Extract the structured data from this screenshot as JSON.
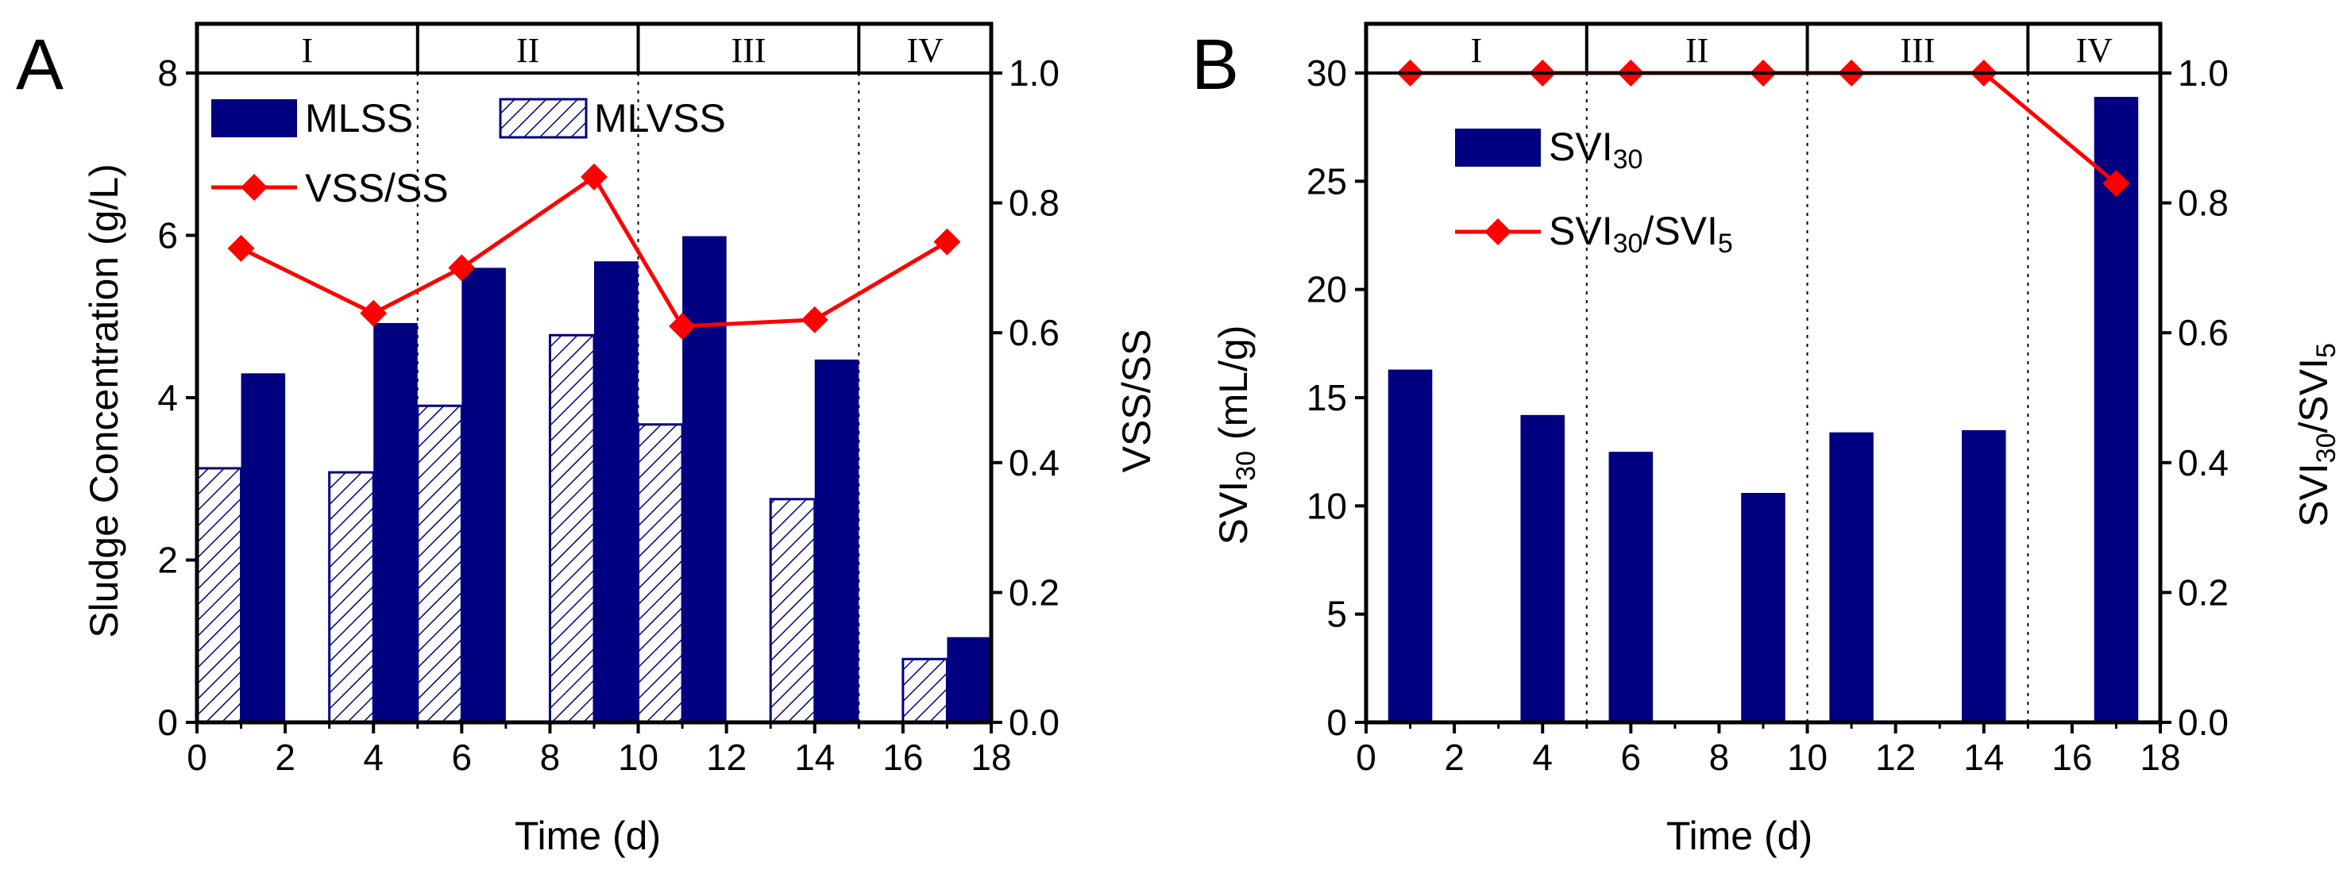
{
  "colors": {
    "bar": "#000080",
    "line": "#ff0000",
    "axis": "#000000"
  },
  "chart_data": [
    {
      "panel": "A",
      "type": "bar",
      "xlabel": "Time (d)",
      "ylabel": "Sludge Concentration (g/L)",
      "y2label": "VSS/SS",
      "xlim": [
        0,
        18
      ],
      "ylim": [
        0,
        8
      ],
      "y2lim": [
        0,
        1.0
      ],
      "xticks": [
        0,
        2,
        4,
        6,
        8,
        10,
        12,
        14,
        16,
        18
      ],
      "yticks": [
        0,
        2,
        4,
        6,
        8
      ],
      "y2ticks": [
        "0.0",
        "0.2",
        "0.4",
        "0.6",
        "0.8",
        "1.0"
      ],
      "phases": [
        {
          "label": "I",
          "start": 0,
          "end": 5
        },
        {
          "label": "II",
          "start": 5,
          "end": 10
        },
        {
          "label": "III",
          "start": 10,
          "end": 15
        },
        {
          "label": "IV",
          "start": 15,
          "end": 18
        }
      ],
      "days": [
        1,
        4,
        6,
        9,
        11,
        14,
        17
      ],
      "series": [
        {
          "name": "MLSS",
          "kind": "bar-solid",
          "values": [
            4.3,
            4.92,
            5.6,
            5.68,
            5.99,
            4.47,
            1.05
          ]
        },
        {
          "name": "MLVSS",
          "kind": "bar-hatched",
          "values": [
            3.13,
            3.08,
            3.9,
            4.77,
            3.67,
            2.75,
            0.78
          ]
        },
        {
          "name": "VSS/SS",
          "kind": "line",
          "axis": "right",
          "values": [
            0.73,
            0.63,
            0.7,
            0.84,
            0.61,
            0.62,
            0.74
          ]
        }
      ]
    },
    {
      "panel": "B",
      "type": "bar",
      "xlabel": "Time (d)",
      "ylabel": "SVI30 (mL/g)",
      "y2label": "SVI30/SVI5",
      "xlim": [
        0,
        18
      ],
      "ylim": [
        0,
        30
      ],
      "y2lim": [
        0,
        1.0
      ],
      "xticks": [
        0,
        2,
        4,
        6,
        8,
        10,
        12,
        14,
        16,
        18
      ],
      "yticks": [
        0,
        5,
        10,
        15,
        20,
        25,
        30
      ],
      "y2ticks": [
        "0.0",
        "0.2",
        "0.4",
        "0.6",
        "0.8",
        "1.0"
      ],
      "phases": [
        {
          "label": "I",
          "start": 0,
          "end": 5
        },
        {
          "label": "II",
          "start": 5,
          "end": 10
        },
        {
          "label": "III",
          "start": 10,
          "end": 15
        },
        {
          "label": "IV",
          "start": 15,
          "end": 18
        }
      ],
      "days": [
        1,
        4,
        6,
        9,
        11,
        14,
        17
      ],
      "series": [
        {
          "name": "SVI30",
          "kind": "bar-solid",
          "values": [
            16.3,
            14.2,
            12.5,
            10.6,
            13.4,
            13.5,
            28.9
          ]
        },
        {
          "name": "SVI30/SVI5",
          "kind": "line",
          "axis": "right",
          "values": [
            1.0,
            1.0,
            1.0,
            1.0,
            1.0,
            1.0,
            0.83
          ]
        }
      ]
    }
  ]
}
